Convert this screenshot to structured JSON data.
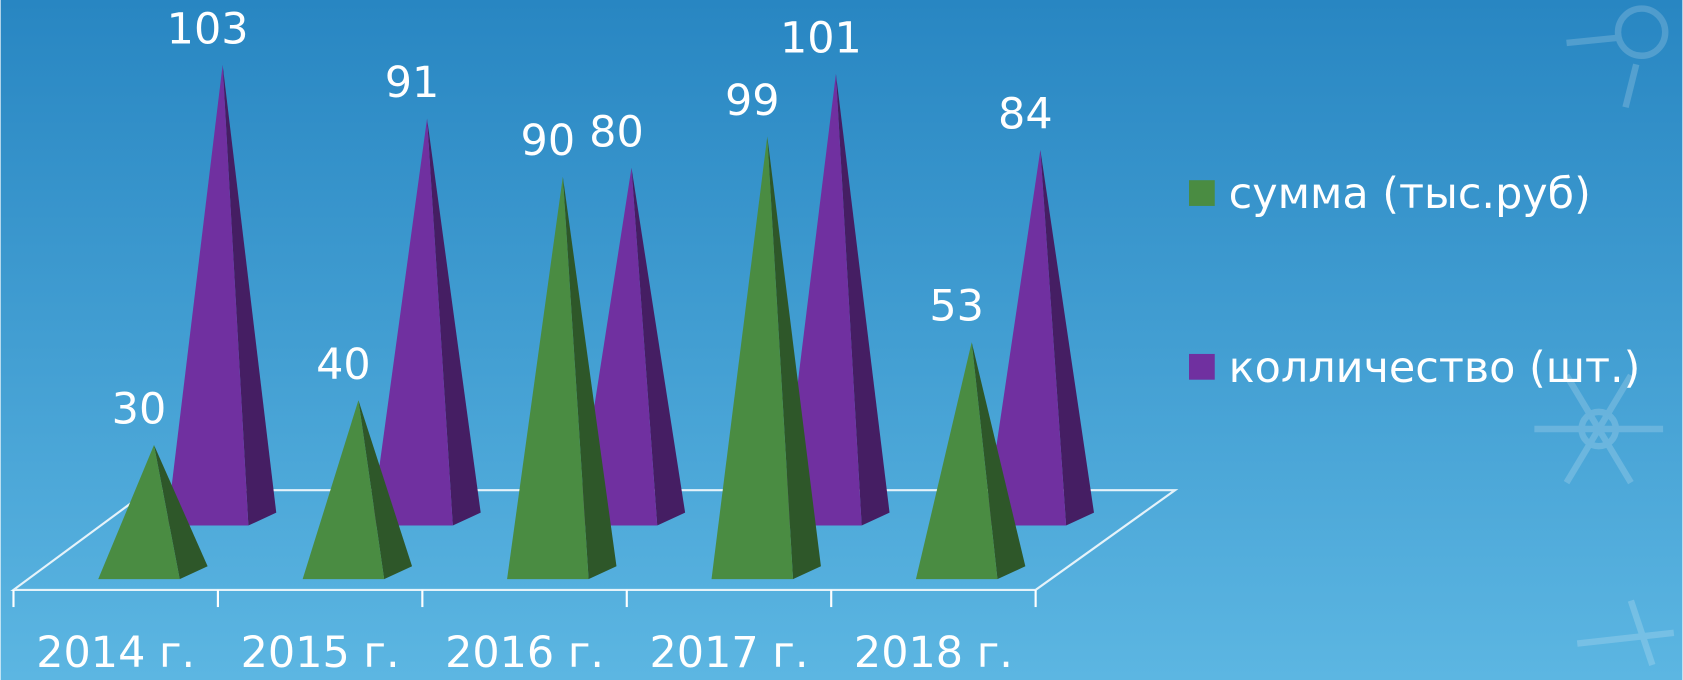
{
  "chart_data": {
    "type": "pyramid",
    "categories": [
      "2014 г.",
      "2015 г.",
      "2016 г.",
      "2017 г.",
      "2018 г."
    ],
    "series": [
      {
        "name": "сумма (тыс.руб)",
        "color": "#4a8c42",
        "values": [
          30,
          40,
          90,
          99,
          53
        ]
      },
      {
        "name": "колличество (шт.)",
        "color": "#7030a0",
        "values": [
          103,
          91,
          80,
          101,
          84
        ]
      }
    ],
    "legend": "right"
  }
}
